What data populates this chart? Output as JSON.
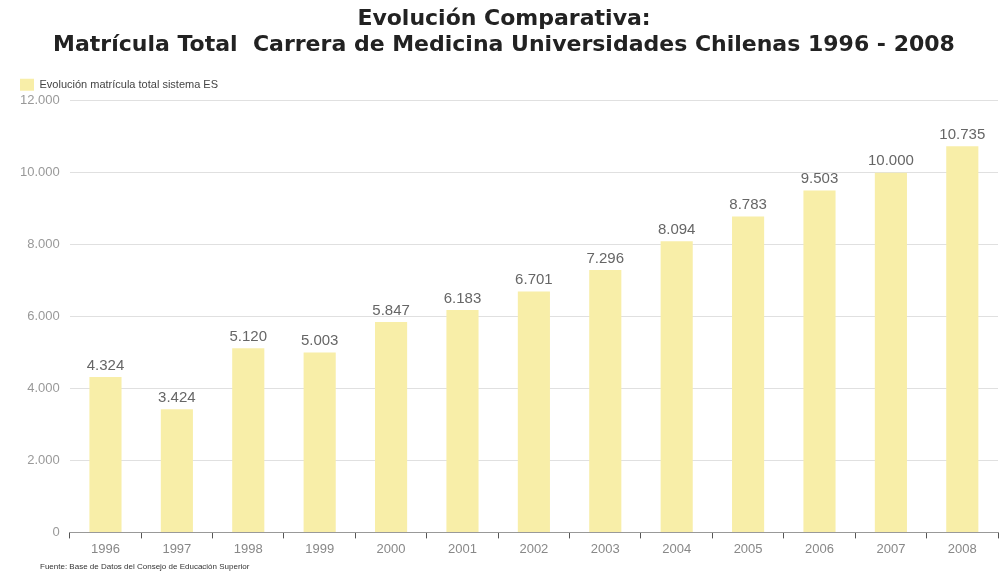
{
  "chart_data": {
    "type": "bar",
    "title": "Evolución Comparativa:\nMatrícula Total  Carrera de Medicina Universidades Chilenas 1996 - 2008",
    "categories": [
      "1996",
      "1997",
      "1998",
      "1999",
      "2000",
      "2001",
      "2002",
      "2003",
      "2004",
      "2005",
      "2006",
      "2007",
      "2008"
    ],
    "series": [
      {
        "name": "Evolución matrícula total sistema ES",
        "color": "#f8eea8",
        "values": [
          4324,
          3424,
          5120,
          5003,
          5847,
          6183,
          6701,
          7296,
          8094,
          8783,
          9503,
          10000,
          10735
        ],
        "value_labels": [
          "4.324",
          "3.424",
          "5.120",
          "5.003",
          "5.847",
          "6.183",
          "6.701",
          "7.296",
          "8.094",
          "8.783",
          "9.503",
          "10.000",
          "10.735"
        ]
      }
    ],
    "ylim": [
      0,
      12000
    ],
    "yticks": [
      {
        "value": 0,
        "label": "0"
      },
      {
        "value": 2000,
        "label": "2.000"
      },
      {
        "value": 4000,
        "label": "4.000"
      },
      {
        "value": 6000,
        "label": "6.000"
      },
      {
        "value": 8000,
        "label": "8.000"
      },
      {
        "value": 10000,
        "label": "10.000"
      },
      {
        "value": 12000,
        "label": "12.000"
      }
    ],
    "grid": "y",
    "legend": "top left",
    "annotations": [
      "Fuente: Base de Datos del Consejo de Educación Superior"
    ]
  }
}
